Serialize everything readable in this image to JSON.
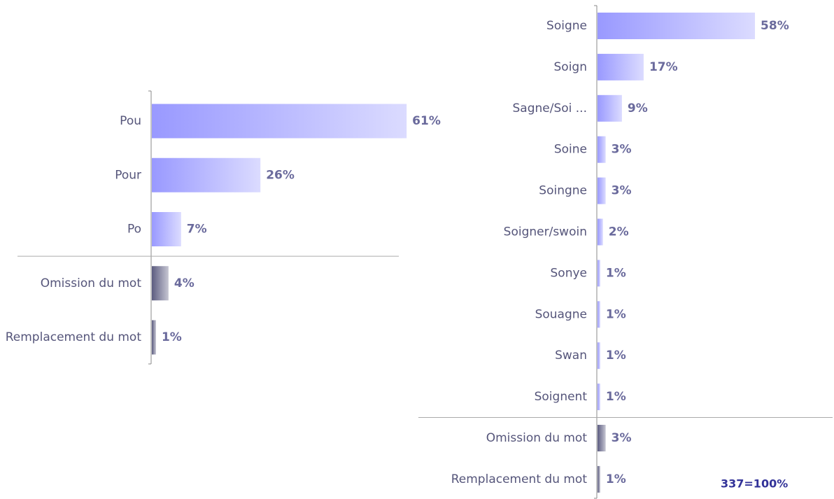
{
  "chart_data": [
    {
      "type": "bar",
      "orientation": "horizontal",
      "categories": [
        "Pou",
        "Pour",
        "Po",
        "Omission du mot",
        "Remplacement du mot"
      ],
      "values": [
        61,
        26,
        7,
        4,
        1
      ],
      "value_labels": [
        "61%",
        "26%",
        "7%",
        "4%",
        "1%"
      ],
      "colors": [
        "#9999ff",
        "#9999ff",
        "#9999ff",
        "#5c5c80",
        "#5c5c80"
      ]
    },
    {
      "type": "bar",
      "orientation": "horizontal",
      "categories": [
        "Soigne",
        "Soign",
        "Sagne/Soi ...",
        "Soine",
        "Soingne",
        "Soigner/swoin",
        "Sonye",
        "Souagne",
        "Swan",
        "Soignent",
        "Omission du mot",
        "Remplacement du mot"
      ],
      "values": [
        58,
        17,
        9,
        3,
        3,
        2,
        1,
        1,
        1,
        1,
        3,
        1
      ],
      "value_labels": [
        "58%",
        "17%",
        "9%",
        "3%",
        "3%",
        "2%",
        "1%",
        "1%",
        "1%",
        "1%",
        "3%",
        "1%"
      ],
      "colors": [
        "#9999ff",
        "#9999ff",
        "#9999ff",
        "#9999ff",
        "#9999ff",
        "#9999ff",
        "#9999ff",
        "#9999ff",
        "#9999ff",
        "#9999ff",
        "#5c5c80",
        "#5c5c80"
      ]
    }
  ],
  "footnote": "337=100%"
}
